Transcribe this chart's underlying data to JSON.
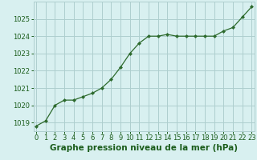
{
  "hours": [
    0,
    1,
    2,
    3,
    4,
    5,
    6,
    7,
    8,
    9,
    10,
    11,
    12,
    13,
    14,
    15,
    16,
    17,
    18,
    19,
    20,
    21,
    22,
    23
  ],
  "pressure": [
    1018.8,
    1019.1,
    1020.0,
    1020.3,
    1020.3,
    1020.5,
    1020.7,
    1021.0,
    1021.5,
    1022.2,
    1023.0,
    1023.6,
    1024.0,
    1024.0,
    1024.1,
    1024.0,
    1024.0,
    1024.0,
    1024.0,
    1024.0,
    1024.3,
    1024.5,
    1025.1,
    1025.7
  ],
  "ylim": [
    1018.5,
    1026.0
  ],
  "yticks": [
    1019,
    1020,
    1021,
    1022,
    1023,
    1024,
    1025
  ],
  "xticks": [
    0,
    1,
    2,
    3,
    4,
    5,
    6,
    7,
    8,
    9,
    10,
    11,
    12,
    13,
    14,
    15,
    16,
    17,
    18,
    19,
    20,
    21,
    22,
    23
  ],
  "line_color": "#2d6a2d",
  "marker_color": "#2d6a2d",
  "bg_color": "#d8f0f0",
  "grid_color": "#aecece",
  "xlabel": "Graphe pression niveau de la mer (hPa)",
  "label_color": "#1a5c1a",
  "xlabel_fontsize": 7.5,
  "tick_fontsize": 6,
  "figsize": [
    3.2,
    2.0
  ],
  "dpi": 100
}
